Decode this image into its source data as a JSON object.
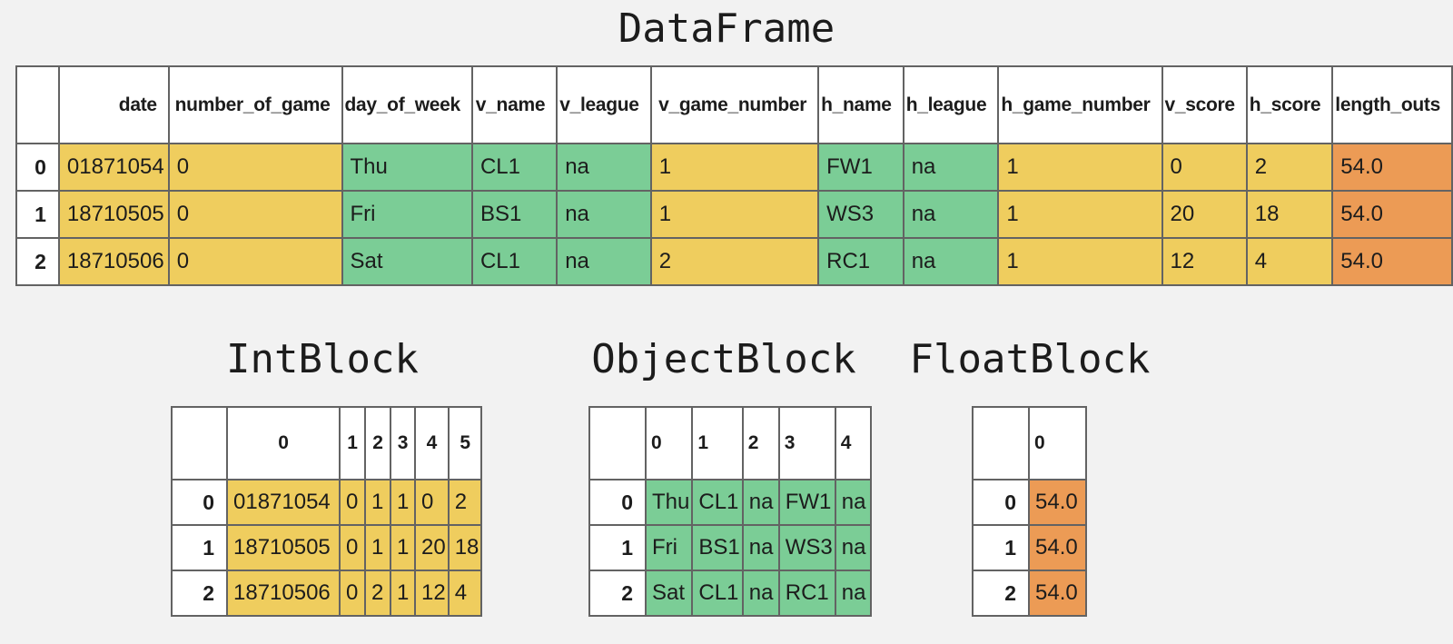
{
  "colors": {
    "background": "#f2f2f2",
    "cell_bg": "#ffffff",
    "border": "#636363",
    "text": "#1c1c1c",
    "int": "#efcd5e",
    "object": "#7bcd96",
    "float": "#ec9b55"
  },
  "dataframe": {
    "title": "DataFrame",
    "columns": [
      "date",
      "number_of_game",
      "day_of_week",
      "v_name",
      "v_league",
      "v_game_number",
      "h_name",
      "h_league",
      "h_game_number",
      "v_score",
      "h_score",
      "length_outs"
    ],
    "column_types": [
      "int",
      "int",
      "object",
      "object",
      "object",
      "int",
      "object",
      "object",
      "int",
      "int",
      "int",
      "float"
    ],
    "row_labels": [
      "0",
      "1",
      "2"
    ],
    "rows": [
      [
        "01871054",
        "0",
        "Thu",
        "CL1",
        "na",
        "1",
        "FW1",
        "na",
        "1",
        "0",
        "2",
        "54.0"
      ],
      [
        "18710505",
        "0",
        "Fri",
        "BS1",
        "na",
        "1",
        "WS3",
        "na",
        "1",
        "20",
        "18",
        "54.0"
      ],
      [
        "18710506",
        "0",
        "Sat",
        "CL1",
        "na",
        "2",
        "RC1",
        "na",
        "1",
        "12",
        "4",
        "54.0"
      ]
    ]
  },
  "blocks": [
    {
      "title": "IntBlock",
      "type": "int",
      "columns": [
        "0",
        "1",
        "2",
        "3",
        "4",
        "5"
      ],
      "row_labels": [
        "0",
        "1",
        "2"
      ],
      "rows": [
        [
          "01871054",
          "0",
          "1",
          "1",
          "0",
          "2"
        ],
        [
          "18710505",
          "0",
          "1",
          "1",
          "20",
          "18"
        ],
        [
          "18710506",
          "0",
          "2",
          "1",
          "12",
          "4"
        ]
      ]
    },
    {
      "title": "ObjectBlock",
      "type": "object",
      "columns": [
        "0",
        "1",
        "2",
        "3",
        "4"
      ],
      "row_labels": [
        "0",
        "1",
        "2"
      ],
      "rows": [
        [
          "Thu",
          "CL1",
          "na",
          "FW1",
          "na"
        ],
        [
          "Fri",
          "BS1",
          "na",
          "WS3",
          "na"
        ],
        [
          "Sat",
          "CL1",
          "na",
          "RC1",
          "na"
        ]
      ]
    },
    {
      "title": "FloatBlock",
      "type": "float",
      "columns": [
        "0"
      ],
      "row_labels": [
        "0",
        "1",
        "2"
      ],
      "rows": [
        [
          "54.0"
        ],
        [
          "54.0"
        ],
        [
          "54.0"
        ]
      ]
    }
  ]
}
